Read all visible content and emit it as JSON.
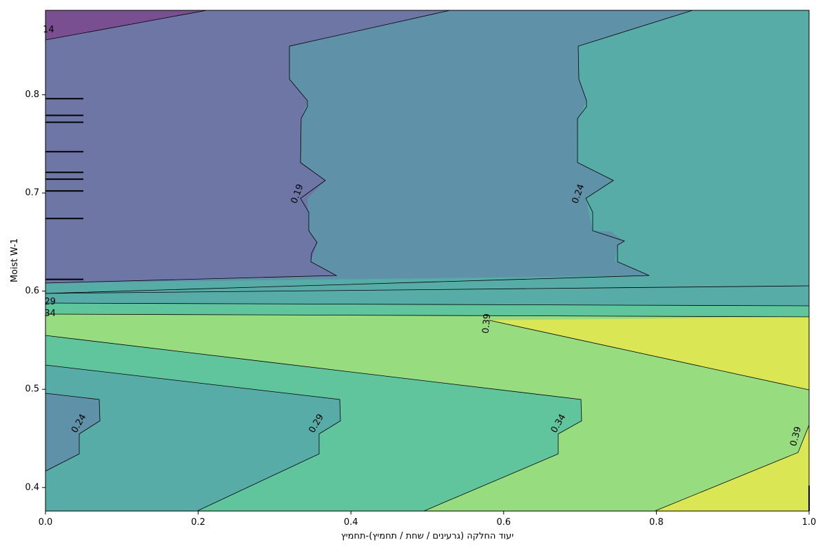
{
  "chart_data": {
    "type": "contour",
    "xlabel": "יעוד החלקה (גרעינים / שחת / תחמיץ)-תחמיץ",
    "ylabel": "Moist W-1",
    "xlim": [
      0.0,
      1.0
    ],
    "ylim": [
      0.376,
      0.886
    ],
    "x_ticks": [
      0.0,
      0.2,
      0.4,
      0.6,
      0.8,
      1.0
    ],
    "x_tick_labels": [
      "0.0",
      "0.2",
      "0.4",
      "0.6",
      "0.8",
      "1.0"
    ],
    "y_ticks": [
      0.4,
      0.5,
      0.6,
      0.7,
      0.8
    ],
    "y_tick_labels": [
      "0.4",
      "0.5",
      "0.6",
      "0.7",
      "0.8"
    ],
    "levels": [
      0.14,
      0.19,
      0.24,
      0.29,
      0.34,
      0.39
    ],
    "colormap": [
      "#7a4f92",
      "#6e76a6",
      "#5f92a8",
      "#57aca8",
      "#60c59c",
      "#97dc7f",
      "#dbe655"
    ],
    "contour_labels": [
      {
        "text": "14",
        "x": 0.004,
        "y": 0.866,
        "rotation": 0
      },
      {
        "text": "0.19",
        "x": 0.33,
        "y": 0.699,
        "rotation": -70
      },
      {
        "text": "0.24",
        "x": 0.698,
        "y": 0.699,
        "rotation": -70
      },
      {
        "text": "29",
        "x": 0.006,
        "y": 0.589,
        "rotation": 0
      },
      {
        "text": "34",
        "x": 0.006,
        "y": 0.577,
        "rotation": 0
      },
      {
        "text": "0.39",
        "x": 0.578,
        "y": 0.567,
        "rotation": -85
      },
      {
        "text": "0.24",
        "x": 0.044,
        "y": 0.465,
        "rotation": -60
      },
      {
        "text": "0.29",
        "x": 0.355,
        "y": 0.465,
        "rotation": -60
      },
      {
        "text": "0.34",
        "x": 0.672,
        "y": 0.465,
        "rotation": -60
      },
      {
        "text": "0.39",
        "x": 0.983,
        "y": 0.452,
        "rotation": -75
      }
    ],
    "rug_y": [
      0.612,
      0.674,
      0.702,
      0.714,
      0.721,
      0.742,
      0.772,
      0.779,
      0.796
    ],
    "rug_x": [
      1.0
    ]
  }
}
